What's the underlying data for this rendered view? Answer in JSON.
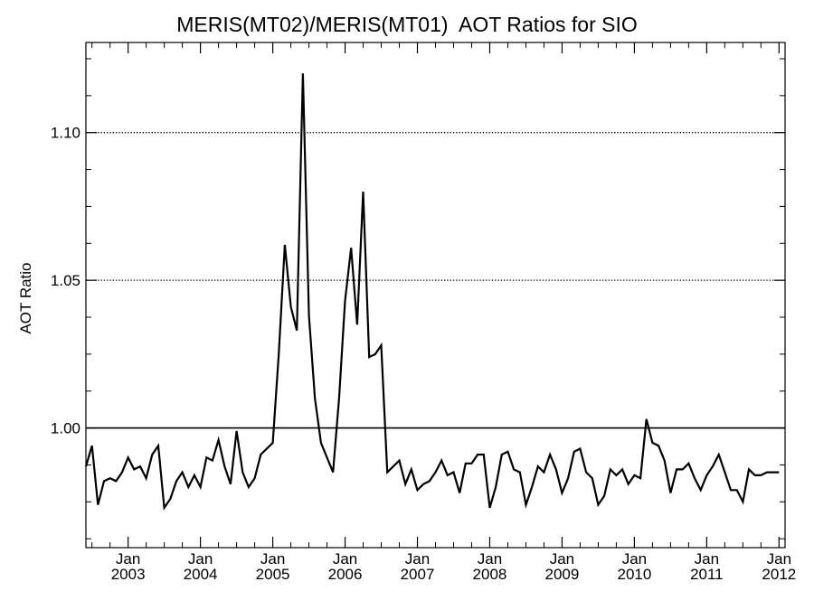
{
  "chart_data": {
    "type": "line",
    "title": "MERIS(MT02)/MERIS(MT01)  AOT Ratios for SIO",
    "xlabel": "",
    "ylabel": "AOT Ratio",
    "xlim": [
      "2002-06",
      "2012-02"
    ],
    "ylim": [
      0.9595,
      1.1305
    ],
    "y_ticks": [
      {
        "value": 1.0,
        "label": "1.00"
      },
      {
        "value": 1.05,
        "label": "1.05"
      },
      {
        "value": 1.1,
        "label": "1.10"
      }
    ],
    "y_minor_step": 0.0125,
    "x_ticks": [
      {
        "date": "2003-01",
        "label_month": "Jan",
        "label_year": "2003"
      },
      {
        "date": "2004-01",
        "label_month": "Jan",
        "label_year": "2004"
      },
      {
        "date": "2005-01",
        "label_month": "Jan",
        "label_year": "2005"
      },
      {
        "date": "2006-01",
        "label_month": "Jan",
        "label_year": "2006"
      },
      {
        "date": "2007-01",
        "label_month": "Jan",
        "label_year": "2007"
      },
      {
        "date": "2008-01",
        "label_month": "Jan",
        "label_year": "2008"
      },
      {
        "date": "2009-01",
        "label_month": "Jan",
        "label_year": "2009"
      },
      {
        "date": "2010-01",
        "label_month": "Jan",
        "label_year": "2010"
      },
      {
        "date": "2011-01",
        "label_month": "Jan",
        "label_year": "2011"
      },
      {
        "date": "2012-01",
        "label_month": "Jan",
        "label_year": "2012"
      }
    ],
    "reference_lines": [
      {
        "y": 1.0,
        "style": "solid"
      },
      {
        "y": 1.05,
        "style": "dotted"
      },
      {
        "y": 1.1,
        "style": "dotted"
      }
    ],
    "grid": false,
    "series": [
      {
        "color": "#000000",
        "points": [
          [
            "2002-06",
            0.987
          ],
          [
            "2002-07",
            0.994
          ],
          [
            "2002-08",
            0.974
          ],
          [
            "2002-09",
            0.982
          ],
          [
            "2002-10",
            0.983
          ],
          [
            "2002-11",
            0.982
          ],
          [
            "2002-12",
            0.985
          ],
          [
            "2003-01",
            0.99
          ],
          [
            "2003-02",
            0.986
          ],
          [
            "2003-03",
            0.987
          ],
          [
            "2003-04",
            0.983
          ],
          [
            "2003-05",
            0.991
          ],
          [
            "2003-06",
            0.994
          ],
          [
            "2003-07",
            0.973
          ],
          [
            "2003-08",
            0.976
          ],
          [
            "2003-09",
            0.982
          ],
          [
            "2003-10",
            0.985
          ],
          [
            "2003-11",
            0.98
          ],
          [
            "2003-12",
            0.984
          ],
          [
            "2004-01",
            0.98
          ],
          [
            "2004-02",
            0.99
          ],
          [
            "2004-03",
            0.989
          ],
          [
            "2004-04",
            0.996
          ],
          [
            "2004-05",
            0.987
          ],
          [
            "2004-06",
            0.981
          ],
          [
            "2004-07",
            0.999
          ],
          [
            "2004-08",
            0.985
          ],
          [
            "2004-09",
            0.98
          ],
          [
            "2004-10",
            0.983
          ],
          [
            "2004-11",
            0.991
          ],
          [
            "2005-01",
            0.995
          ],
          [
            "2005-02",
            1.025
          ],
          [
            "2005-03",
            1.062
          ],
          [
            "2005-04",
            1.041
          ],
          [
            "2005-05",
            1.033
          ],
          [
            "2005-06",
            1.12
          ],
          [
            "2005-07",
            1.038
          ],
          [
            "2005-08",
            1.01
          ],
          [
            "2005-09",
            0.995
          ],
          [
            "2005-11",
            0.985
          ],
          [
            "2005-12",
            1.01
          ],
          [
            "2006-01",
            1.043
          ],
          [
            "2006-02",
            1.061
          ],
          [
            "2006-03",
            1.035
          ],
          [
            "2006-04",
            1.08
          ],
          [
            "2006-05",
            1.024
          ],
          [
            "2006-06",
            1.025
          ],
          [
            "2006-07",
            1.028
          ],
          [
            "2006-08",
            0.985
          ],
          [
            "2006-09",
            0.987
          ],
          [
            "2006-10",
            0.989
          ],
          [
            "2006-11",
            0.981
          ],
          [
            "2006-12",
            0.986
          ],
          [
            "2007-01",
            0.979
          ],
          [
            "2007-02",
            0.981
          ],
          [
            "2007-03",
            0.982
          ],
          [
            "2007-04",
            0.985
          ],
          [
            "2007-05",
            0.989
          ],
          [
            "2007-06",
            0.984
          ],
          [
            "2007-07",
            0.985
          ],
          [
            "2007-08",
            0.978
          ],
          [
            "2007-09",
            0.988
          ],
          [
            "2007-10",
            0.988
          ],
          [
            "2007-11",
            0.991
          ],
          [
            "2007-12",
            0.991
          ],
          [
            "2008-01",
            0.973
          ],
          [
            "2008-02",
            0.98
          ],
          [
            "2008-03",
            0.991
          ],
          [
            "2008-04",
            0.992
          ],
          [
            "2008-05",
            0.986
          ],
          [
            "2008-06",
            0.985
          ],
          [
            "2008-07",
            0.974
          ],
          [
            "2008-08",
            0.98
          ],
          [
            "2008-09",
            0.987
          ],
          [
            "2008-10",
            0.985
          ],
          [
            "2008-11",
            0.991
          ],
          [
            "2008-12",
            0.986
          ],
          [
            "2009-01",
            0.978
          ],
          [
            "2009-02",
            0.983
          ],
          [
            "2009-03",
            0.992
          ],
          [
            "2009-04",
            0.993
          ],
          [
            "2009-05",
            0.985
          ],
          [
            "2009-06",
            0.983
          ],
          [
            "2009-07",
            0.974
          ],
          [
            "2009-08",
            0.977
          ],
          [
            "2009-09",
            0.986
          ],
          [
            "2009-10",
            0.984
          ],
          [
            "2009-11",
            0.986
          ],
          [
            "2009-12",
            0.981
          ],
          [
            "2010-01",
            0.984
          ],
          [
            "2010-02",
            0.983
          ],
          [
            "2010-03",
            1.003
          ],
          [
            "2010-04",
            0.995
          ],
          [
            "2010-05",
            0.994
          ],
          [
            "2010-06",
            0.989
          ],
          [
            "2010-07",
            0.978
          ],
          [
            "2010-08",
            0.986
          ],
          [
            "2010-09",
            0.986
          ],
          [
            "2010-10",
            0.988
          ],
          [
            "2010-11",
            0.983
          ],
          [
            "2010-12",
            0.979
          ],
          [
            "2011-01",
            0.984
          ],
          [
            "2011-02",
            0.987
          ],
          [
            "2011-03",
            0.991
          ],
          [
            "2011-04",
            0.985
          ],
          [
            "2011-05",
            0.979
          ],
          [
            "2011-06",
            0.979
          ],
          [
            "2011-07",
            0.975
          ],
          [
            "2011-08",
            0.986
          ],
          [
            "2011-09",
            0.984
          ],
          [
            "2011-10",
            0.984
          ],
          [
            "2011-11",
            0.985
          ],
          [
            "2012-01",
            0.985
          ]
        ]
      }
    ]
  }
}
